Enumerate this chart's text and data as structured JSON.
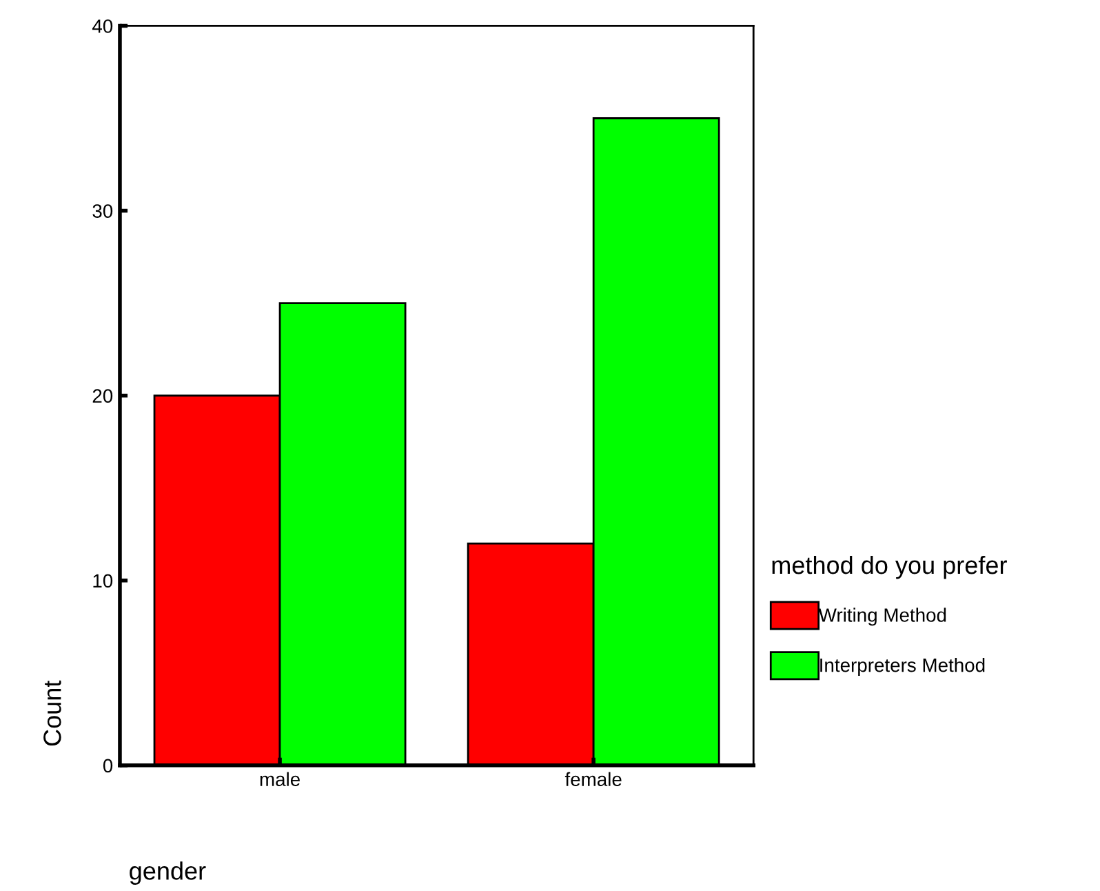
{
  "chart_data": {
    "type": "bar",
    "xlabel": "gender",
    "ylabel": "Count",
    "legend_title": "method do you prefer",
    "categories": [
      "male",
      "female"
    ],
    "series": [
      {
        "name": "Writing Method",
        "color": "#ff0000",
        "values": [
          20,
          12
        ]
      },
      {
        "name": "Interpreters Method",
        "color": "#00ff00",
        "values": [
          25,
          35
        ]
      }
    ],
    "ylim": [
      0,
      40
    ],
    "yticks": [
      0,
      10,
      20,
      30,
      40
    ],
    "grid": false,
    "legend": "right"
  }
}
